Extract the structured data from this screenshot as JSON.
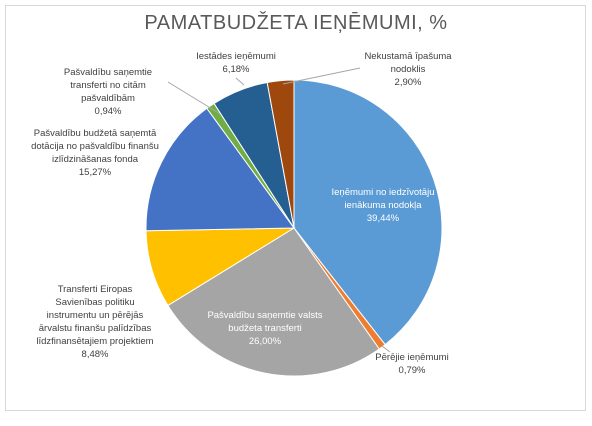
{
  "chart_data": {
    "type": "pie",
    "title": "PAMATBUDŽETA IEŅĒMUMI, %",
    "categories": [
      "Ieņēmumi no iedzīvotāju ienākuma nodokļa",
      "Pērējie ieņēmumi",
      "Pašvaldību saņemtie valsts budžeta transferti",
      "Transferti Eiropas Savienības politiku instrumentu un pērējās ārvalstu finanšu palīdzības līdzfinansētajiem projektiem",
      "Pašvaldību budžetā saņemtā dotācija no pašvaldību finanšu izlīdzināšanas fonda",
      "Pašvaldību saņemtie transferti no citām pašvaldībām",
      "Iestādes ieņēmumi",
      "Nekustamā īpašuma nodoklis"
    ],
    "values": [
      39.44,
      0.79,
      26.0,
      8.48,
      15.27,
      0.94,
      6.18,
      2.9
    ],
    "value_labels": [
      "39,44%",
      "0,79%",
      "26,00%",
      "8,48%",
      "15,27%",
      "0,94%",
      "6,18%",
      "2,90%"
    ],
    "colors": [
      "#5b9bd5",
      "#ed7d31",
      "#a5a5a5",
      "#ffc000",
      "#4472c4",
      "#70ad47",
      "#255e91",
      "#9e480e"
    ]
  }
}
